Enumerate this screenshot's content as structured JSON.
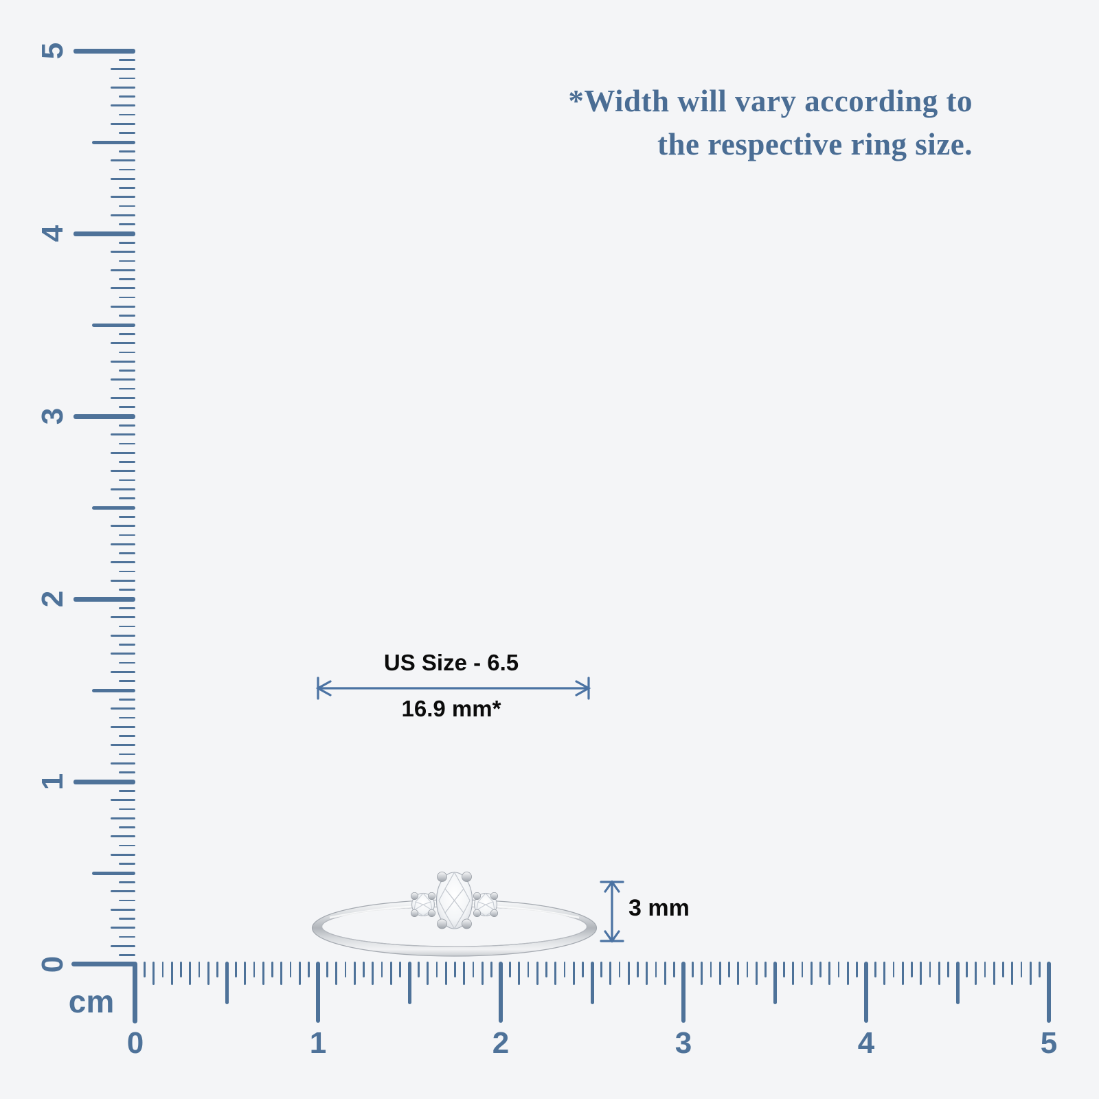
{
  "note": {
    "line1": "*Width will vary according to",
    "line2": "the respective ring size."
  },
  "ruler": {
    "unit_label": "cm",
    "min": 0,
    "max": 5,
    "minor_step_cm": 0.05,
    "horizontal": {
      "tick_labels": [
        "0",
        "1",
        "2",
        "3",
        "4",
        "5"
      ]
    },
    "vertical": {
      "tick_labels": [
        "0",
        "1",
        "2",
        "3",
        "4",
        "5"
      ]
    }
  },
  "measurements": {
    "ring_diameter": {
      "title": "US Size - 6.5",
      "value": "16.9 mm*"
    },
    "band_width": {
      "value": "3 mm"
    }
  },
  "ring": {
    "description": "white-gold thin band, oval center diamond with two round side diamonds, prong set"
  },
  "colors": {
    "background": "#f4f5f7",
    "ruler_blue": "#4e7299",
    "arrow_blue": "#4b73a3",
    "note_blue": "#4a6d94",
    "label_black": "#0b0b0b"
  }
}
